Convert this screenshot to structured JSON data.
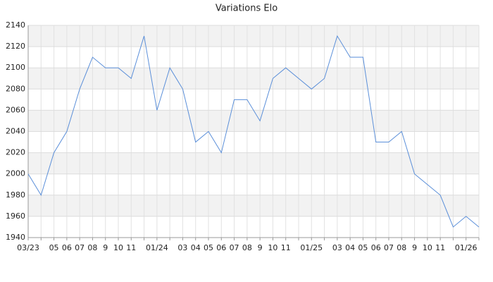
{
  "chart_data": {
    "type": "line",
    "title": "Variations Elo",
    "categories": [
      "03/23",
      null,
      "05",
      "06",
      "07",
      "08",
      "9",
      "10",
      "11",
      null,
      "01/24",
      null,
      "03",
      "04",
      "05",
      "06",
      "07",
      "08",
      "9",
      "10",
      "11",
      null,
      "01/25",
      null,
      "03",
      "04",
      "05",
      "06",
      "07",
      "08",
      "9",
      "10",
      "11",
      null,
      "01/26",
      null
    ],
    "values": [
      2000,
      1980,
      2020,
      2040,
      2080,
      2110,
      2100,
      2100,
      2090,
      2130,
      2060,
      2100,
      2080,
      2030,
      2040,
      2020,
      2070,
      2070,
      2050,
      2090,
      2100,
      2090,
      2080,
      2090,
      2130,
      2110,
      2110,
      2030,
      2030,
      2040,
      2000,
      1990,
      1980,
      1950,
      1960,
      1950
    ],
    "color": "#5b8fd9",
    "ylim": [
      1940,
      2140
    ],
    "yticks": [
      1940,
      1960,
      1980,
      2000,
      2020,
      2040,
      2060,
      2080,
      2100,
      2120,
      2140
    ],
    "grid": true
  }
}
